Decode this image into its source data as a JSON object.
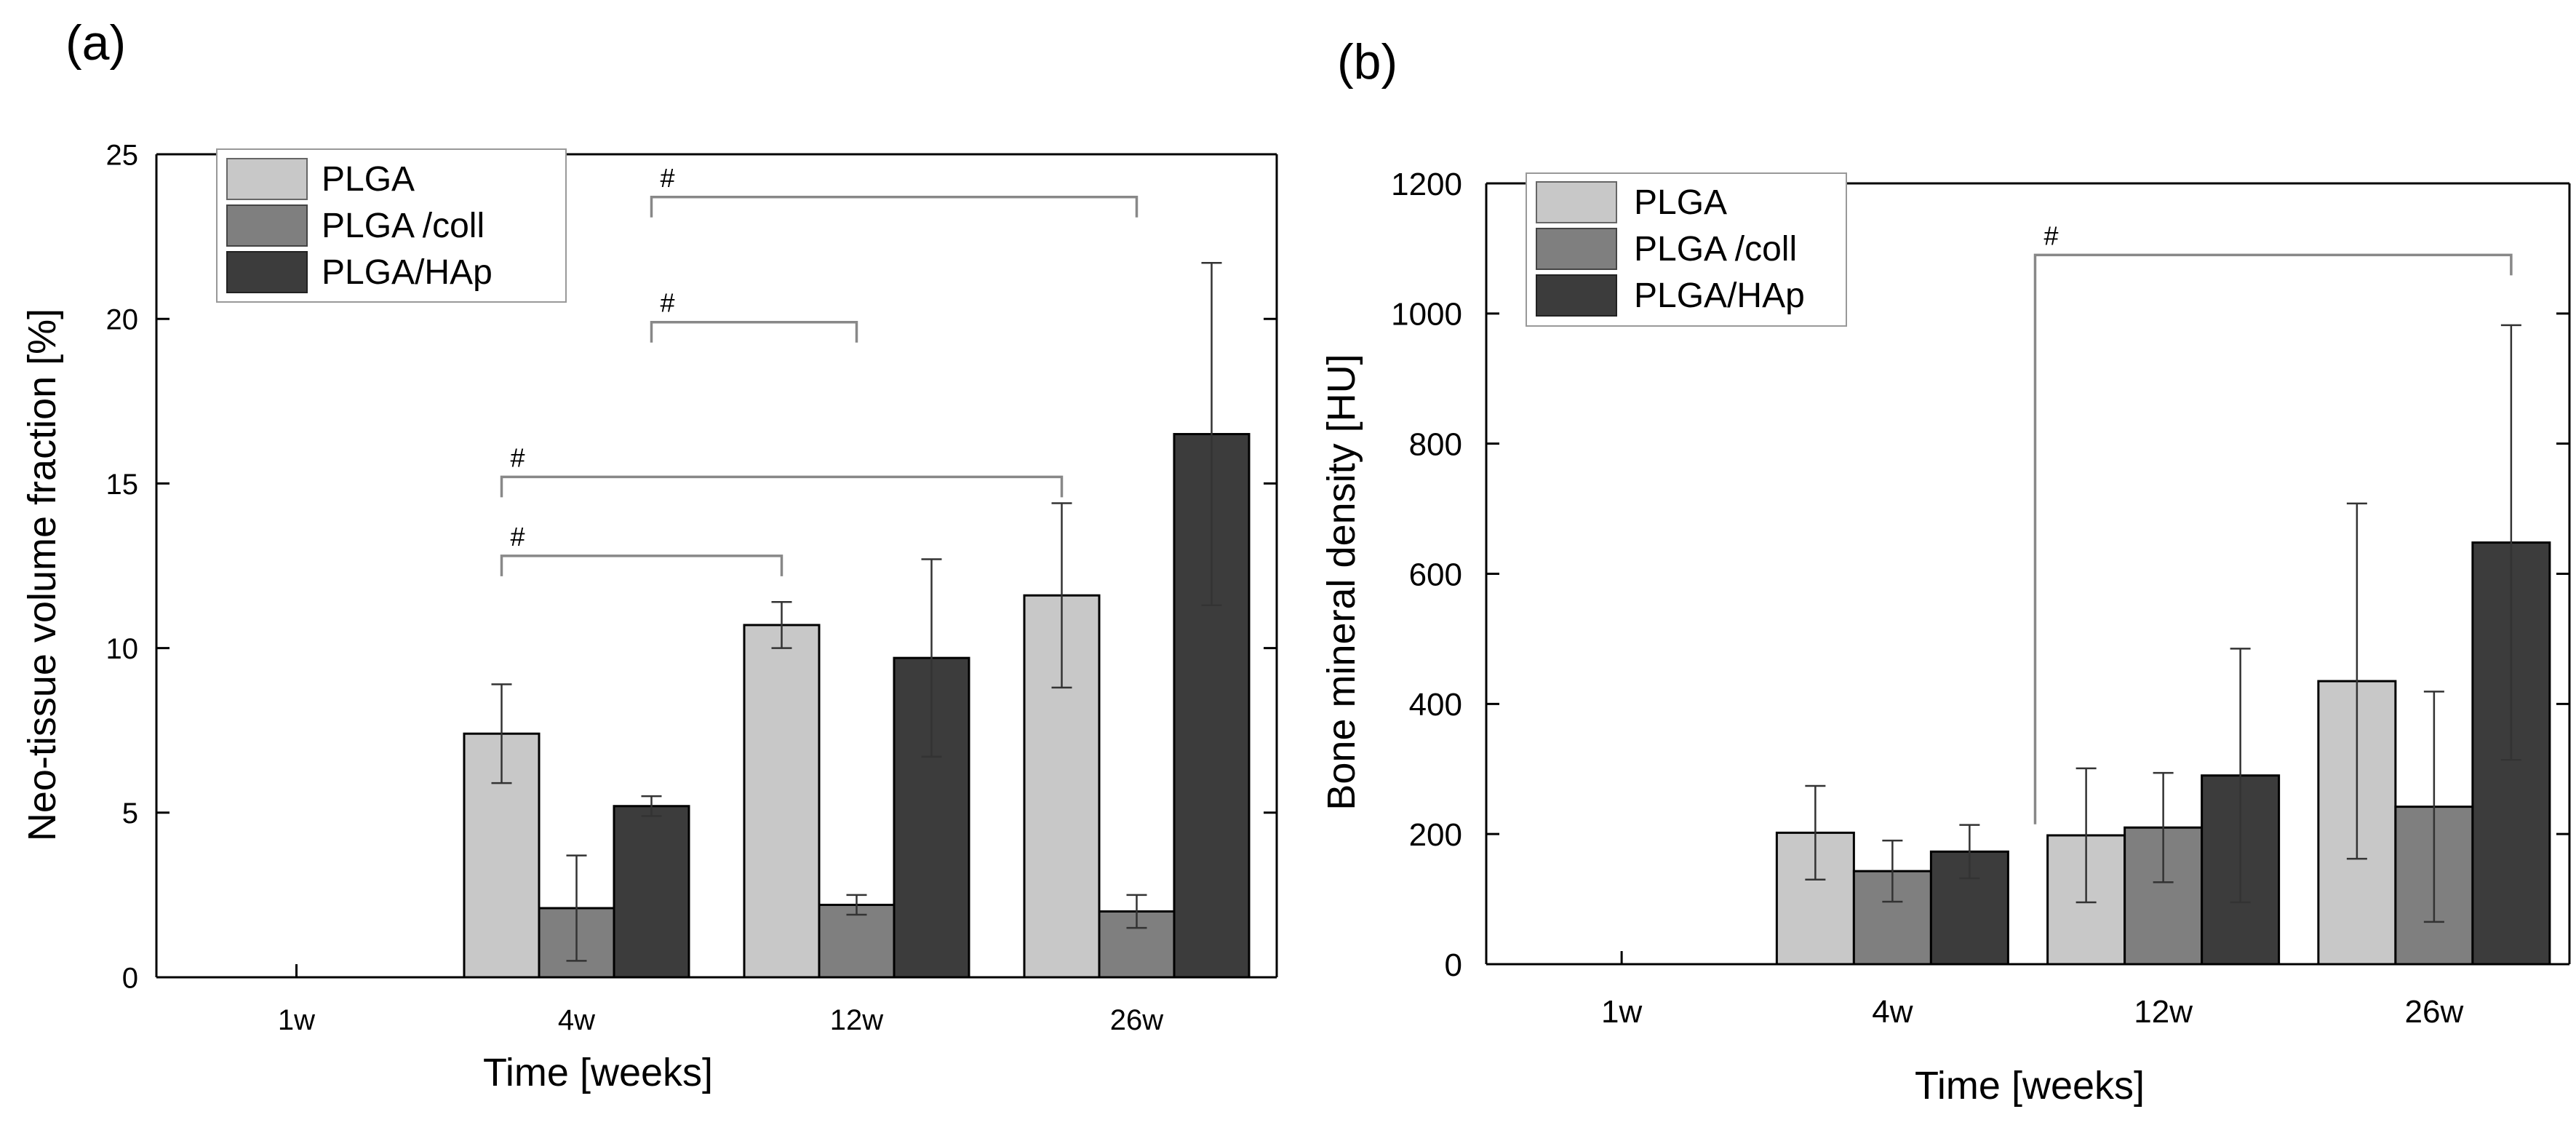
{
  "chart_data": [
    {
      "panel_label": "(a)",
      "type": "bar",
      "title": "",
      "xlabel": "Time [weeks]",
      "ylabel": "Neo-tissue volume fraction [%]",
      "ylim": [
        0,
        25
      ],
      "yticks": [
        0,
        5,
        10,
        15,
        20,
        25
      ],
      "categories": [
        "1w",
        "4w",
        "12w",
        "26w"
      ],
      "grid": false,
      "legend_position": "top-left",
      "series": [
        {
          "name": "PLGA",
          "color": "#c8c8c8",
          "values": [
            0,
            7.4,
            10.7,
            11.6
          ],
          "errors": [
            0,
            1.5,
            0.7,
            2.8
          ]
        },
        {
          "name": "PLGA /coll",
          "color": "#7f7f7f",
          "values": [
            0,
            2.1,
            2.2,
            2.0
          ],
          "errors": [
            0,
            1.6,
            0.3,
            0.5
          ]
        },
        {
          "name": "PLGA/HAp",
          "color": "#3c3c3c",
          "values": [
            0,
            5.2,
            9.7,
            16.5
          ],
          "errors": [
            0,
            0.3,
            3.0,
            5.2
          ]
        }
      ],
      "annotations": [
        {
          "label": "#",
          "from": {
            "category": 1,
            "series": 0
          },
          "to": {
            "category": 2,
            "series": 0
          },
          "y": 12.8
        },
        {
          "label": "#",
          "from": {
            "category": 1,
            "series": 0
          },
          "to": {
            "category": 3,
            "series": 0
          },
          "y": 15.2
        },
        {
          "label": "#",
          "from": {
            "category": 1,
            "series": 2
          },
          "to": {
            "category": 2,
            "series": 1
          },
          "y": 19.9
        },
        {
          "label": "#",
          "from": {
            "category": 1,
            "series": 2
          },
          "to": {
            "category": 3,
            "series": 1
          },
          "y": 23.7
        }
      ]
    },
    {
      "panel_label": "(b)",
      "type": "bar",
      "title": "",
      "xlabel": "Time [weeks]",
      "ylabel": "Bone mineral density [HU]",
      "ylim": [
        0,
        1200
      ],
      "yticks": [
        0,
        200,
        400,
        600,
        800,
        1000,
        1200
      ],
      "categories": [
        "1w",
        "4w",
        "12w",
        "26w"
      ],
      "grid": false,
      "legend_position": "top-left",
      "series": [
        {
          "name": "PLGA",
          "color": "#c8c8c8",
          "values": [
            0,
            202,
            198,
            435
          ],
          "errors": [
            0,
            72,
            103,
            273
          ]
        },
        {
          "name": "PLGA /coll",
          "color": "#7f7f7f",
          "values": [
            0,
            143,
            210,
            242
          ],
          "errors": [
            0,
            47,
            84,
            177
          ]
        },
        {
          "name": "PLGA/HAp",
          "color": "#3c3c3c",
          "values": [
            0,
            173,
            290,
            648
          ],
          "errors": [
            0,
            41,
            195,
            334
          ]
        }
      ],
      "annotations": [
        {
          "label": "#",
          "from": {
            "category": 1,
            "series": 2,
            "gap": 0.5
          },
          "to": {
            "category": 3,
            "series": 2
          },
          "y": 1090,
          "from_drop": 215
        }
      ]
    }
  ]
}
